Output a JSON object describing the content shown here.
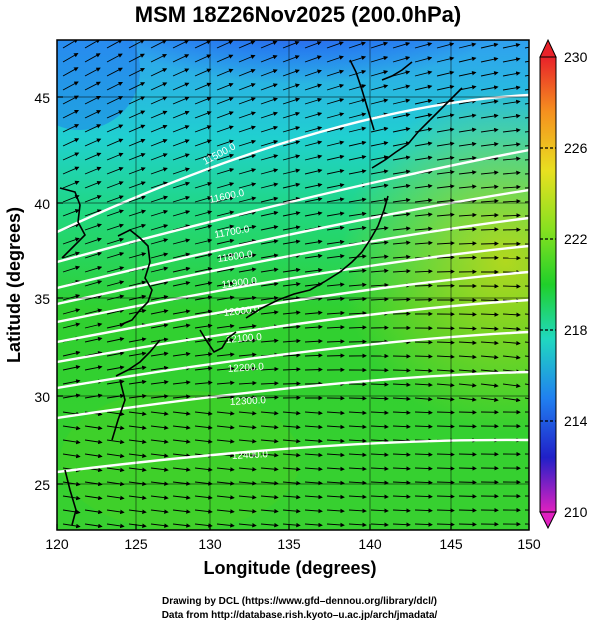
{
  "title": "MSM 18Z26Nov2025 (200.0hPa)",
  "xlabel": "Longitude (degrees)",
  "ylabel": "Latitude  (degrees)",
  "credits": [
    "Drawing by DCL (https://www.gfd–dennou.org/library/dcl/)",
    "Data from http://database.rish.kyoto–u.ac.jp/arch/jmadata/"
  ],
  "xticks": [
    "120",
    "125",
    "130",
    "135",
    "140",
    "145",
    "150"
  ],
  "yticks": [
    "25",
    "30",
    "35",
    "40",
    "45"
  ],
  "colorbar_ticks": [
    "230",
    "226",
    "222",
    "218",
    "214",
    "210"
  ],
  "contour_labels": [
    "11500.0",
    "11600.0",
    "11700.0",
    "11800.0",
    "11900.0",
    "12000.0",
    "12100.0",
    "12200.0",
    "12300.0",
    "12400.0"
  ],
  "colors": {
    "wind_arrows": "#000000",
    "contours": "#ffffff",
    "coastline": "#000000"
  },
  "chart_data": {
    "type": "heatmap",
    "title": "MSM 18Z26Nov2025 (200.0hPa)",
    "xlabel": "Longitude (degrees)",
    "ylabel": "Latitude  (degrees)",
    "xlim": [
      120,
      150
    ],
    "ylim": [
      22.5,
      48
    ],
    "colorbar": {
      "min": 210,
      "max": 230,
      "ticks": [
        230,
        226,
        222,
        218,
        214,
        210
      ]
    },
    "contours": [
      {
        "label": "11500.0",
        "value": 11500
      },
      {
        "label": "11600.0",
        "value": 11600
      },
      {
        "label": "11700.0",
        "value": 11700
      },
      {
        "label": "11800.0",
        "value": 11800
      },
      {
        "label": "11900.0",
        "value": 11900
      },
      {
        "label": "12000.0",
        "value": 12000
      },
      {
        "label": "12100.0",
        "value": 12100
      },
      {
        "label": "12200.0",
        "value": 12200
      },
      {
        "label": "12300.0",
        "value": 12300
      },
      {
        "label": "12400.0",
        "value": 12400
      }
    ]
  }
}
